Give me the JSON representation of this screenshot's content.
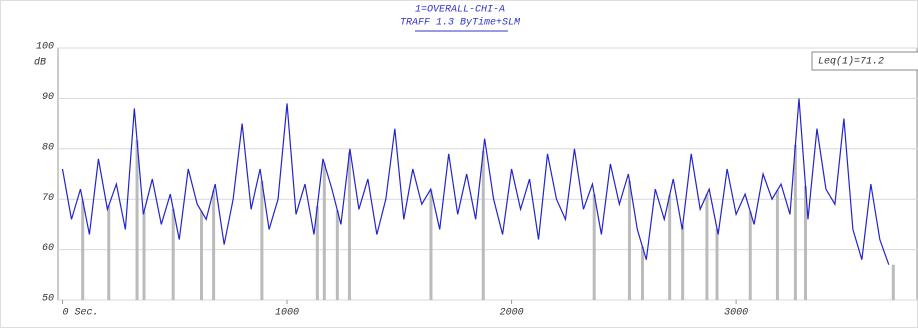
{
  "chart_data": {
    "type": "line",
    "title": "1=OVERALL-CHI-A",
    "subtitle": "TRAFF 1.3 ByTime+SLM",
    "ylabel": "dB",
    "legend": "Leq(1)=71.2",
    "legend_position": "upper right",
    "grid": true,
    "xlim": [
      -20,
      3810
    ],
    "ylim": [
      50,
      100
    ],
    "yticks": [
      50,
      60,
      70,
      80,
      90,
      100
    ],
    "xticks": [
      {
        "value": 0,
        "label": "0 Sec."
      },
      1000,
      2000,
      3000
    ],
    "x": [
      0,
      40,
      80,
      120,
      160,
      200,
      240,
      280,
      320,
      360,
      400,
      440,
      480,
      520,
      560,
      600,
      640,
      680,
      720,
      760,
      800,
      840,
      880,
      920,
      960,
      1000,
      1040,
      1080,
      1120,
      1160,
      1200,
      1240,
      1280,
      1320,
      1360,
      1400,
      1440,
      1480,
      1520,
      1560,
      1600,
      1640,
      1680,
      1720,
      1760,
      1800,
      1840,
      1880,
      1920,
      1960,
      2000,
      2040,
      2080,
      2120,
      2160,
      2200,
      2240,
      2280,
      2320,
      2360,
      2400,
      2440,
      2480,
      2520,
      2560,
      2600,
      2640,
      2680,
      2720,
      2760,
      2800,
      2840,
      2880,
      2920,
      2960,
      3000,
      3040,
      3080,
      3120,
      3160,
      3200,
      3240,
      3280,
      3320,
      3360,
      3400,
      3440,
      3480,
      3520,
      3560,
      3600,
      3640,
      3680
    ],
    "series": [
      {
        "color": "#2424cc",
        "values": [
          76,
          66,
          72,
          63,
          78,
          68,
          73,
          64,
          88,
          67,
          74,
          65,
          71,
          62,
          76,
          69,
          66,
          73,
          61,
          70,
          85,
          68,
          76,
          64,
          70,
          89,
          67,
          73,
          63,
          78,
          72,
          65,
          80,
          68,
          74,
          63,
          70,
          84,
          66,
          76,
          69,
          72,
          64,
          79,
          67,
          75,
          66,
          82,
          70,
          63,
          76,
          68,
          74,
          62,
          79,
          70,
          66,
          80,
          68,
          73,
          63,
          77,
          69,
          75,
          64,
          58,
          72,
          66,
          74,
          64,
          79,
          68,
          72,
          63,
          76,
          67,
          71,
          65,
          75,
          70,
          73,
          67,
          90,
          66,
          84,
          72,
          69,
          86,
          64,
          58,
          73,
          62,
          57
        ]
      }
    ],
    "events": {
      "color": "#bbbbbb",
      "x": [
        90,
        206,
        332,
        363,
        493,
        619,
        673,
        888,
        1135,
        1166,
        1224,
        1278,
        1641,
        1874,
        2368,
        2525,
        2583,
        2704,
        2762,
        2870,
        2915,
        3063,
        3184,
        3264,
        3309,
        3700
      ]
    }
  }
}
